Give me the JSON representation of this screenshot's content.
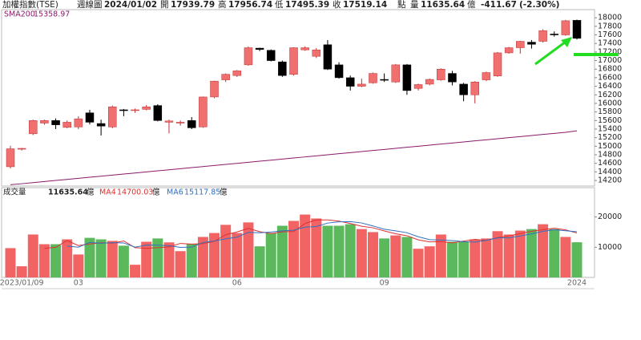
{
  "header": {
    "title": "加權指數(TSE)",
    "period": "週線圖",
    "date": "2024/01/02",
    "open_label": "開",
    "high_label": "高",
    "low_label": "低",
    "close_label": "收",
    "unit": "點",
    "volume_label": "量",
    "change": -411.67,
    "change_pct": "(-2.30%)"
  },
  "chart_data": [
    {
      "type": "candlestick",
      "up_color": "#f07070",
      "down_color": "#000000",
      "open": [
        14520,
        14930,
        15290,
        15540,
        15600,
        15440,
        15450,
        15780,
        15530,
        15450,
        15850,
        15840,
        15860,
        15950,
        15560,
        15540,
        15600,
        15450,
        16150,
        16550,
        16650,
        16900,
        17290,
        17240,
        16970,
        16680,
        17250,
        17100,
        17370,
        16900,
        16600,
        16400,
        16480,
        16560,
        16500,
        16900,
        16350,
        16450,
        16550,
        16700,
        16450,
        16200,
        16550,
        16640,
        17180,
        17300,
        17430,
        17450,
        17620,
        17600,
        17939.79
      ],
      "high": [
        15010,
        14960,
        15620,
        15620,
        15650,
        15600,
        15700,
        15850,
        15620,
        15950,
        15870,
        15880,
        15960,
        15980,
        15620,
        15600,
        15680,
        16160,
        16530,
        16700,
        16780,
        17330,
        17300,
        17260,
        17000,
        17310,
        17330,
        17290,
        17480,
        16960,
        16650,
        16580,
        16720,
        16700,
        16920,
        16920,
        16460,
        16580,
        16820,
        16760,
        16480,
        16520,
        16740,
        17200,
        17320,
        17460,
        17480,
        17730,
        17680,
        17950,
        17956.74
      ],
      "low": [
        14480,
        14900,
        15260,
        15500,
        15400,
        15420,
        15400,
        15510,
        15250,
        15420,
        15700,
        15780,
        15840,
        15580,
        15300,
        15480,
        15400,
        15430,
        16120,
        16500,
        16620,
        16880,
        17220,
        16980,
        16620,
        16650,
        17230,
        17060,
        16780,
        16580,
        16300,
        16380,
        16460,
        16500,
        16480,
        16200,
        16300,
        16420,
        16530,
        16420,
        16050,
        16000,
        16520,
        16620,
        17160,
        17160,
        17280,
        17420,
        17560,
        17580,
        17495.39
      ],
      "close": [
        14940,
        14950,
        15600,
        15600,
        15500,
        15560,
        15640,
        15560,
        15470,
        15920,
        15830,
        15850,
        15920,
        15600,
        15590,
        15560,
        15430,
        16150,
        16520,
        16680,
        16760,
        17300,
        17260,
        17000,
        16650,
        17300,
        17300,
        17250,
        16800,
        16600,
        16400,
        16450,
        16700,
        16540,
        16900,
        16300,
        16440,
        16560,
        16800,
        16500,
        16200,
        16500,
        16720,
        17180,
        17300,
        17450,
        17380,
        17700,
        17600,
        17930,
        17519.14
      ],
      "ylim": [
        14070,
        18190
      ],
      "yticks": [
        14200,
        14400,
        14600,
        14800,
        15000,
        15200,
        15400,
        15600,
        15800,
        16000,
        16200,
        16400,
        16600,
        16800,
        17000,
        17200,
        17400,
        17600,
        17800,
        18000
      ],
      "lines": [
        {
          "name": "SMA200",
          "color": "#8b1a6b",
          "values": [
            14100,
            14125,
            14150,
            14175,
            14200,
            14225,
            14250,
            14275,
            14300,
            14325,
            14350,
            14375,
            14400,
            14425,
            14450,
            14475,
            14500,
            14525,
            14550,
            14575,
            14600,
            14625,
            14650,
            14675,
            14700,
            14725,
            14750,
            14775,
            14800,
            14825,
            14850,
            14875,
            14900,
            14925,
            14950,
            14975,
            15000,
            15025,
            15050,
            15075,
            15100,
            15125,
            15150,
            15175,
            15200,
            15225,
            15250,
            15275,
            15300,
            15325,
            15358.97
          ]
        }
      ]
    },
    {
      "type": "bar",
      "name": "成交量",
      "unit": "億",
      "up_color": "#f26464",
      "down_color": "#5cb85c",
      "categories": [
        null,
        "2023/01/09",
        null,
        null,
        null,
        null,
        "03",
        null,
        null,
        null,
        null,
        null,
        null,
        null,
        null,
        null,
        null,
        null,
        null,
        null,
        "06",
        null,
        null,
        null,
        null,
        null,
        null,
        null,
        null,
        null,
        null,
        null,
        null,
        "09",
        null,
        null,
        null,
        null,
        null,
        null,
        null,
        null,
        null,
        null,
        null,
        null,
        null,
        null,
        null,
        null,
        "2024"
      ],
      "values": [
        9700,
        3700,
        14200,
        11000,
        11000,
        12600,
        7600,
        13100,
        12600,
        12100,
        10500,
        4200,
        11800,
        12900,
        11600,
        8700,
        11000,
        13400,
        14700,
        17400,
        14700,
        18200,
        10300,
        14700,
        17100,
        18700,
        20800,
        19500,
        17100,
        17100,
        17600,
        16000,
        15000,
        12900,
        13900,
        13400,
        9500,
        10300,
        14200,
        11800,
        11800,
        12600,
        12900,
        15300,
        14200,
        15500,
        16000,
        17600,
        16000,
        13400,
        11635.64
      ],
      "ylim": [
        0,
        29700
      ],
      "yticks": [
        10000,
        20000
      ],
      "lines": [
        {
          "name": "MA4",
          "color": "#e03030",
          "values": [
            null,
            null,
            null,
            9650,
            9975,
            12200,
            10550,
            11075,
            11475,
            11350,
            12075,
            9850,
            9650,
            9850,
            10125,
            11250,
            11050,
            11175,
            11950,
            14125,
            15050,
            16250,
            15150,
            14475,
            15075,
            15200,
            17825,
            19025,
            19025,
            18625,
            17825,
            16950,
            16425,
            15375,
            14450,
            13800,
            12425,
            11775,
            11850,
            11450,
            12025,
            12600,
            12275,
            13150,
            13750,
            14475,
            15250,
            15825,
            16275,
            15750,
            14700.03
          ]
        },
        {
          "name": "MA6",
          "color": "#3070c0",
          "values": [
            null,
            null,
            null,
            null,
            null,
            10367,
            10017,
            11583,
            11317,
            11500,
            11417,
            10017,
            10717,
            10683,
            10517,
            9950,
            10033,
            11567,
            12050,
            12800,
            13317,
            14900,
            14783,
            15000,
            15400,
            15617,
            16633,
            16850,
            17983,
            18383,
            18467,
            18017,
            17050,
            15950,
            15417,
            14800,
            13450,
            12500,
            12367,
            12183,
            11833,
            11700,
            12267,
            13100,
            13100,
            13717,
            14417,
            15250,
            15767,
            15450,
            15117.85
          ]
        }
      ]
    }
  ]
}
